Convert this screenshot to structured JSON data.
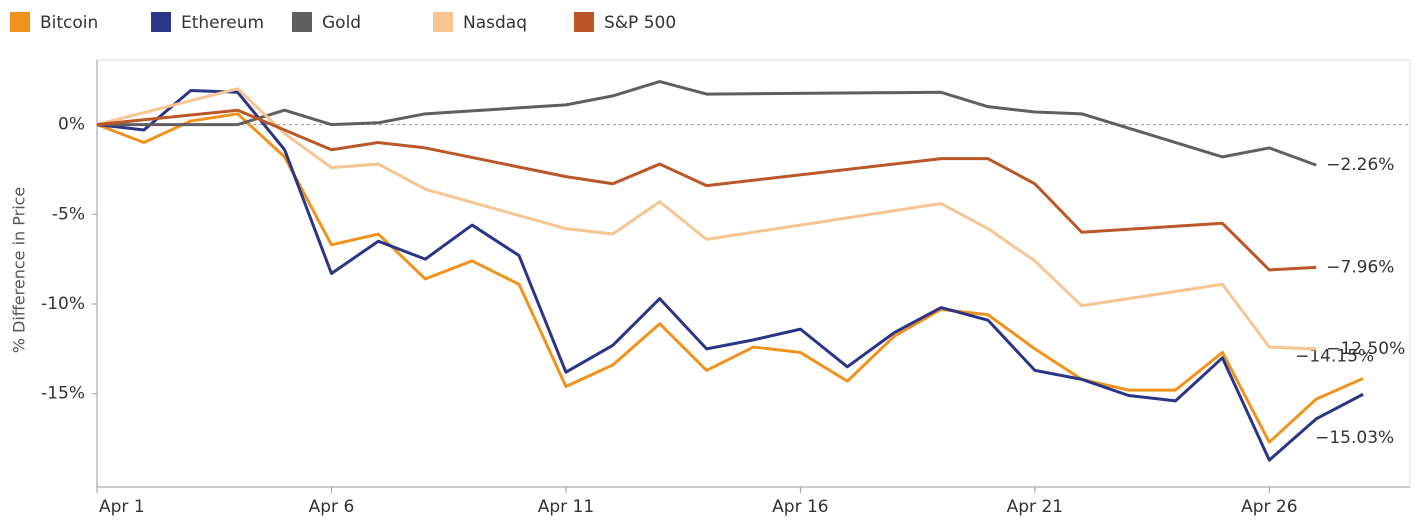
{
  "chart_data": {
    "type": "line",
    "ylabel": "% Difference in Price",
    "xlim": [
      1,
      29
    ],
    "ylim": [
      -20.2,
      3.6
    ],
    "xticks": [
      {
        "value": 1,
        "label": "Apr 1"
      },
      {
        "value": 6,
        "label": "Apr 6"
      },
      {
        "value": 11,
        "label": "Apr 11"
      },
      {
        "value": 16,
        "label": "Apr 16"
      },
      {
        "value": 21,
        "label": "Apr 21"
      },
      {
        "value": 26,
        "label": "Apr 26"
      }
    ],
    "yticks": [
      {
        "value": 0,
        "label": "0%"
      },
      {
        "value": -5,
        "label": "-5%"
      },
      {
        "value": -10,
        "label": "-10%"
      },
      {
        "value": -15,
        "label": "-15%"
      }
    ],
    "legend": "top",
    "series": [
      {
        "name": "Bitcoin",
        "color": "#f0921e",
        "x": [
          1,
          2,
          3,
          4,
          5,
          6,
          7,
          8,
          9,
          10,
          11,
          12,
          13,
          14,
          15,
          16,
          17,
          18,
          19,
          20,
          21,
          22,
          23,
          24,
          25,
          26,
          27,
          28
        ],
        "values": [
          0,
          -1.0,
          0.2,
          0.6,
          -1.8,
          -6.7,
          -6.1,
          -8.6,
          -7.6,
          -8.9,
          -14.6,
          -13.4,
          -11.1,
          -13.7,
          -12.4,
          -12.7,
          -14.3,
          -11.8,
          -10.3,
          -10.6,
          -12.5,
          -14.2,
          -14.8,
          -14.8,
          -12.7,
          -17.7,
          -15.3,
          -14.15
        ],
        "value_labels": [
          null,
          null,
          null,
          null,
          null,
          null,
          null,
          null,
          null,
          null,
          null,
          null,
          null,
          null,
          null,
          null,
          null,
          null,
          null,
          null,
          null,
          null,
          null,
          null,
          null,
          null,
          null,
          "−14.15%"
        ]
      },
      {
        "name": "Ethereum",
        "color": "#2b3585",
        "x": [
          1,
          2,
          3,
          4,
          5,
          6,
          7,
          8,
          9,
          10,
          11,
          12,
          13,
          14,
          15,
          16,
          17,
          18,
          19,
          20,
          21,
          22,
          23,
          24,
          25,
          26,
          27,
          28
        ],
        "values": [
          0,
          -0.3,
          1.9,
          1.8,
          -1.4,
          -8.3,
          -6.5,
          -7.5,
          -5.6,
          -7.3,
          -13.8,
          -12.3,
          -9.7,
          -12.5,
          -12.0,
          -11.4,
          -13.5,
          -11.6,
          -10.2,
          -10.9,
          -13.7,
          -14.2,
          -15.1,
          -15.4,
          -13.0,
          -18.7,
          -16.4,
          -15.03
        ],
        "value_labels": [
          null,
          null,
          null,
          null,
          null,
          null,
          null,
          null,
          null,
          null,
          null,
          null,
          null,
          null,
          null,
          null,
          null,
          null,
          null,
          null,
          null,
          null,
          null,
          null,
          null,
          null,
          null,
          "−15.03%"
        ]
      },
      {
        "name": "Gold",
        "color": "#5f5f5f",
        "x": [
          1,
          4,
          5,
          6,
          7,
          8,
          11,
          12,
          13,
          14,
          19,
          20,
          21,
          22,
          25,
          26,
          27
        ],
        "values": [
          0,
          0,
          0.8,
          0,
          0.1,
          0.6,
          1.1,
          1.6,
          2.4,
          1.7,
          1.8,
          1.0,
          0.7,
          0.6,
          -1.8,
          -1.3,
          -2.26
        ],
        "value_labels": [
          null,
          null,
          null,
          null,
          null,
          null,
          null,
          null,
          null,
          null,
          null,
          null,
          null,
          null,
          null,
          null,
          "−2.26%"
        ]
      },
      {
        "name": "Nasdaq",
        "color": "#f6c592",
        "x": [
          1,
          4,
          5,
          6,
          7,
          8,
          11,
          12,
          13,
          14,
          19,
          20,
          21,
          22,
          25,
          26,
          27
        ],
        "values": [
          0,
          2.0,
          -0.5,
          -2.4,
          -2.2,
          -3.6,
          -5.8,
          -6.1,
          -4.3,
          -6.4,
          -4.4,
          -5.8,
          -7.6,
          -10.1,
          -8.9,
          -12.4,
          -12.5
        ],
        "value_labels": [
          null,
          null,
          null,
          null,
          null,
          null,
          null,
          null,
          null,
          null,
          null,
          null,
          null,
          null,
          null,
          null,
          "−12.50%"
        ]
      },
      {
        "name": "S&P 500",
        "color": "#bb5726",
        "x": [
          1,
          4,
          5,
          6,
          7,
          8,
          11,
          12,
          13,
          14,
          19,
          20,
          21,
          22,
          25,
          26,
          27
        ],
        "values": [
          0,
          0.8,
          -0.3,
          -1.4,
          -1.0,
          -1.3,
          -2.9,
          -3.3,
          -2.2,
          -3.4,
          -1.9,
          -1.9,
          -3.3,
          -6.0,
          -5.5,
          -8.1,
          -7.96
        ],
        "value_labels": [
          null,
          null,
          null,
          null,
          null,
          null,
          null,
          null,
          null,
          null,
          null,
          null,
          null,
          null,
          null,
          null,
          "−7.96%"
        ]
      }
    ]
  }
}
